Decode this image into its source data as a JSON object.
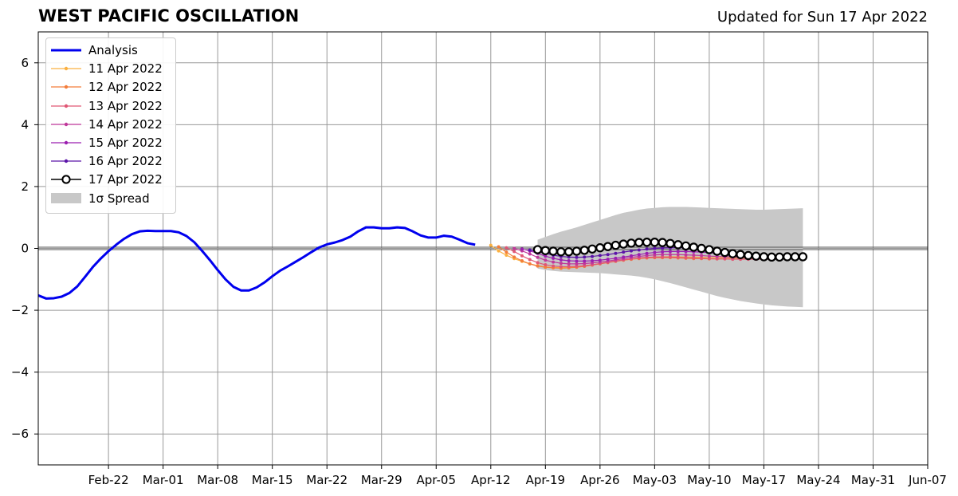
{
  "title": "WEST PACIFIC OSCILLATION",
  "subtitle": "Updated for Sun 17 Apr 2022",
  "colors": {
    "analysis": "#0000ee",
    "grid": "#999999",
    "zero_line": "#555555",
    "spread": "#c8c8c8"
  },
  "chart_data": {
    "type": "line",
    "title": "WEST PACIFIC OSCILLATION",
    "xlabel": "",
    "ylabel": "",
    "xlim": [
      "2022-02-13",
      "2022-06-07"
    ],
    "ylim": [
      -7,
      7
    ],
    "grid": true,
    "legend_position": "top-left",
    "x_ticks": [
      "2022-02-22",
      "2022-03-01",
      "2022-03-08",
      "2022-03-15",
      "2022-03-22",
      "2022-03-29",
      "2022-04-05",
      "2022-04-12",
      "2022-04-19",
      "2022-04-26",
      "2022-05-03",
      "2022-05-10",
      "2022-05-17",
      "2022-05-24",
      "2022-05-31",
      "2022-06-07"
    ],
    "x_tick_labels": [
      "Feb-22",
      "Mar-01",
      "Mar-08",
      "Mar-15",
      "Mar-22",
      "Mar-29",
      "Apr-05",
      "Apr-12",
      "Apr-19",
      "Apr-26",
      "May-03",
      "May-10",
      "May-17",
      "May-24",
      "May-31",
      "Jun-07"
    ],
    "y_ticks": [
      -6,
      -4,
      -2,
      0,
      2,
      4,
      6
    ],
    "y_tick_labels": [
      "−6",
      "−4",
      "−2",
      "0",
      "2",
      "4",
      "6"
    ],
    "analysis": {
      "name": "Analysis",
      "color": "#0000ee",
      "start": "2022-02-13",
      "values": [
        -1.52,
        -1.62,
        -1.61,
        -1.56,
        -1.44,
        -1.23,
        -0.92,
        -0.6,
        -0.33,
        -0.09,
        0.12,
        0.31,
        0.46,
        0.55,
        0.57,
        0.56,
        0.56,
        0.56,
        0.52,
        0.4,
        0.2,
        -0.08,
        -0.38,
        -0.7,
        -1.0,
        -1.24,
        -1.36,
        -1.36,
        -1.26,
        -1.1,
        -0.9,
        -0.72,
        -0.58,
        -0.43,
        -0.28,
        -0.12,
        0.03,
        0.13,
        0.19,
        0.27,
        0.38,
        0.55,
        0.68,
        0.68,
        0.65,
        0.65,
        0.68,
        0.66,
        0.55,
        0.42,
        0.35,
        0.35,
        0.41,
        0.38,
        0.28,
        0.17,
        0.12
      ]
    },
    "forecasts": [
      {
        "name": "11 Apr 2022",
        "color": "#fbb040",
        "start": "2022-04-12",
        "values": [
          0.1,
          -0.08,
          -0.22,
          -0.33,
          -0.42,
          -0.5,
          -0.56,
          -0.6,
          -0.62,
          -0.62,
          -0.61,
          -0.59,
          -0.56,
          -0.53,
          -0.49,
          -0.45,
          -0.41,
          -0.38,
          -0.35,
          -0.32,
          -0.3,
          -0.28,
          -0.27,
          -0.27,
          -0.27,
          -0.28,
          -0.28,
          -0.29,
          -0.3,
          -0.3,
          -0.3,
          -0.3,
          -0.3,
          -0.3,
          -0.3
        ]
      },
      {
        "name": "12 Apr 2022",
        "color": "#f37d3b",
        "start": "2022-04-13",
        "values": [
          0.05,
          -0.12,
          -0.28,
          -0.4,
          -0.5,
          -0.57,
          -0.61,
          -0.63,
          -0.64,
          -0.63,
          -0.61,
          -0.58,
          -0.54,
          -0.5,
          -0.46,
          -0.42,
          -0.38,
          -0.35,
          -0.33,
          -0.31,
          -0.3,
          -0.3,
          -0.3,
          -0.31,
          -0.32,
          -0.33,
          -0.33,
          -0.34,
          -0.34,
          -0.34,
          -0.34,
          -0.34,
          -0.34,
          -0.34,
          -0.34
        ]
      },
      {
        "name": "13 Apr 2022",
        "color": "#e05775",
        "start": "2022-04-14",
        "values": [
          0.02,
          -0.1,
          -0.24,
          -0.36,
          -0.46,
          -0.53,
          -0.57,
          -0.59,
          -0.59,
          -0.58,
          -0.56,
          -0.53,
          -0.49,
          -0.45,
          -0.41,
          -0.37,
          -0.34,
          -0.31,
          -0.29,
          -0.28,
          -0.28,
          -0.28,
          -0.29,
          -0.3,
          -0.31,
          -0.32,
          -0.33,
          -0.34,
          -0.34,
          -0.35,
          -0.35,
          -0.35,
          -0.35,
          -0.35,
          -0.35
        ]
      },
      {
        "name": "14 Apr 2022",
        "color": "#c0389a",
        "start": "2022-04-15",
        "values": [
          0.0,
          -0.08,
          -0.18,
          -0.29,
          -0.38,
          -0.44,
          -0.48,
          -0.5,
          -0.5,
          -0.49,
          -0.47,
          -0.44,
          -0.41,
          -0.37,
          -0.33,
          -0.29,
          -0.26,
          -0.23,
          -0.21,
          -0.2,
          -0.2,
          -0.2,
          -0.21,
          -0.22,
          -0.23,
          -0.25,
          -0.26,
          -0.27,
          -0.28,
          -0.29,
          -0.29,
          -0.3,
          -0.3,
          -0.3,
          -0.3
        ]
      },
      {
        "name": "15 Apr 2022",
        "color": "#9b1fb0",
        "start": "2022-04-16",
        "values": [
          -0.02,
          -0.08,
          -0.16,
          -0.25,
          -0.32,
          -0.37,
          -0.4,
          -0.41,
          -0.41,
          -0.4,
          -0.38,
          -0.35,
          -0.32,
          -0.28,
          -0.24,
          -0.2,
          -0.16,
          -0.13,
          -0.11,
          -0.1,
          -0.1,
          -0.1,
          -0.11,
          -0.12,
          -0.14,
          -0.16,
          -0.18,
          -0.2,
          -0.22,
          -0.24,
          -0.25,
          -0.26,
          -0.27,
          -0.28,
          -0.28
        ]
      },
      {
        "name": "16 Apr 2022",
        "color": "#5b14a8",
        "start": "2022-04-17",
        "values": [
          -0.05,
          -0.1,
          -0.16,
          -0.22,
          -0.26,
          -0.28,
          -0.29,
          -0.28,
          -0.26,
          -0.23,
          -0.2,
          -0.16,
          -0.12,
          -0.08,
          -0.05,
          -0.02,
          0.0,
          0.01,
          0.02,
          0.02,
          0.02,
          0.01,
          -0.01,
          -0.03,
          -0.06,
          -0.09,
          -0.12,
          -0.15,
          -0.18,
          -0.21,
          -0.23,
          -0.25,
          -0.26,
          -0.27,
          -0.27
        ]
      },
      {
        "name": "17 Apr 2022",
        "color": "#000000",
        "hollow_markers": true,
        "start": "2022-04-18",
        "values": [
          -0.04,
          -0.07,
          -0.09,
          -0.11,
          -0.11,
          -0.09,
          -0.06,
          -0.02,
          0.02,
          0.06,
          0.1,
          0.14,
          0.17,
          0.19,
          0.2,
          0.2,
          0.19,
          0.16,
          0.12,
          0.08,
          0.04,
          0.0,
          -0.04,
          -0.09,
          -0.13,
          -0.17,
          -0.2,
          -0.23,
          -0.25,
          -0.27,
          -0.28,
          -0.28,
          -0.27,
          -0.27,
          -0.27
        ]
      }
    ],
    "spread": {
      "name": "1σ Spread",
      "color": "#c8c8c8",
      "start": "2022-04-18",
      "upper": [
        0.28,
        0.37,
        0.46,
        0.54,
        0.61,
        0.68,
        0.76,
        0.84,
        0.92,
        1.0,
        1.08,
        1.15,
        1.2,
        1.25,
        1.29,
        1.31,
        1.33,
        1.34,
        1.34,
        1.34,
        1.33,
        1.32,
        1.31,
        1.3,
        1.29,
        1.28,
        1.27,
        1.26,
        1.25,
        1.25,
        1.26,
        1.27,
        1.28,
        1.29,
        1.3
      ],
      "lower": [
        -0.65,
        -0.7,
        -0.73,
        -0.75,
        -0.76,
        -0.77,
        -0.78,
        -0.79,
        -0.8,
        -0.82,
        -0.84,
        -0.86,
        -0.88,
        -0.91,
        -0.95,
        -1.0,
        -1.06,
        -1.12,
        -1.19,
        -1.26,
        -1.33,
        -1.4,
        -1.47,
        -1.54,
        -1.6,
        -1.65,
        -1.7,
        -1.74,
        -1.78,
        -1.81,
        -1.84,
        -1.86,
        -1.88,
        -1.89,
        -1.9
      ]
    }
  }
}
